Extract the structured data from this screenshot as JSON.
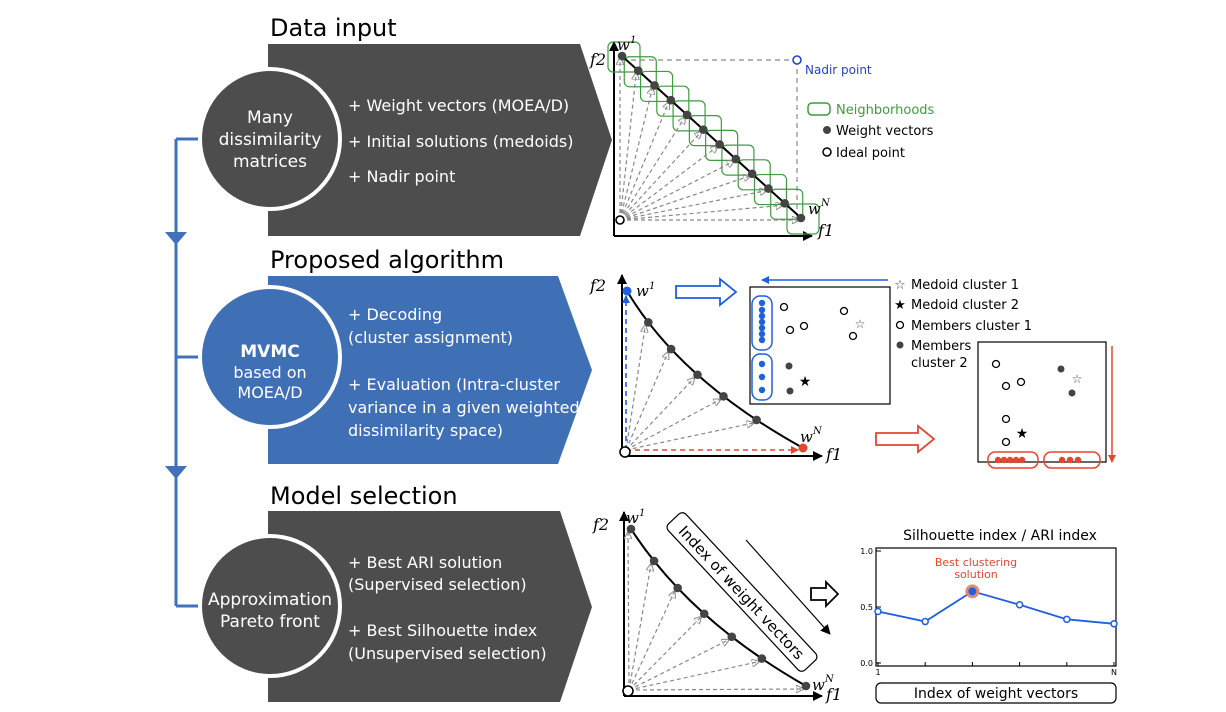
{
  "colors": {
    "dark_panel": "#4d4d4d",
    "blue_panel": "#3f6fb5",
    "arrow_blue": "#3f72b8",
    "accent_red": "#e5462d",
    "neighborhood_green": "#3f9b3f",
    "nadir_blue": "#2244cc",
    "weight_blue": "#1f5fe0"
  },
  "stages": [
    {
      "title": "Data input",
      "circle_lines": [
        "Many",
        "dissimilarity",
        "matrices"
      ],
      "bullets": [
        "+ Weight vectors (MOEA/D)",
        "+ Initial solutions (medoids)",
        "+ Nadir point"
      ]
    },
    {
      "title": "Proposed algorithm",
      "circle_title": "MVMC",
      "circle_lines": [
        "based on",
        "MOEA/D"
      ],
      "bullets": [
        "+ Decoding",
        "(cluster assignment)",
        "+ Evaluation (Intra-cluster",
        "variance in a given weighted",
        "dissimilarity space)"
      ]
    },
    {
      "title": "Model selection",
      "circle_lines": [
        "Approximation",
        "Pareto front"
      ],
      "bullets": [
        "+ Best ARI solution",
        "(Supervised selection)",
        "+ Best Silhouette index",
        "(Unsupervised selection)"
      ]
    }
  ],
  "plot1": {
    "f2": "f2",
    "f1": "f1",
    "w1": "w",
    "w1_sup": "1",
    "wN": "w",
    "wN_sup": "N",
    "nadir_label": "Nadir point",
    "legend": [
      "Neighborhoods",
      "Weight vectors",
      "Ideal point"
    ]
  },
  "plot2": {
    "f2": "f2",
    "f1": "f1",
    "w1": "w",
    "w1_sup": "1",
    "wN": "w",
    "wN_sup": "N",
    "legend": [
      "Medoid cluster 1",
      "Medoid cluster 2",
      "Members cluster 1",
      "Members",
      "cluster 2"
    ]
  },
  "plot3": {
    "f2": "f2",
    "f1": "f1",
    "w1": "w",
    "w1_sup": "1",
    "wN": "w",
    "wN_sup": "N",
    "rotated_label": "Index of weight vectors"
  },
  "chart_data": {
    "type": "line",
    "title": "Silhouette index / ARI index",
    "xlabel": "Index of weight vectors",
    "x_tick_labels": [
      "1",
      "N"
    ],
    "yticks": [
      0.0,
      0.5,
      1.0
    ],
    "ylim": [
      0,
      1
    ],
    "annotation": "Best clustering solution",
    "annotation_lines": [
      "Best clustering",
      "solution"
    ],
    "series": [
      {
        "values": [
          0.46,
          0.37,
          0.64,
          0.52,
          0.39,
          0.35
        ]
      }
    ]
  }
}
